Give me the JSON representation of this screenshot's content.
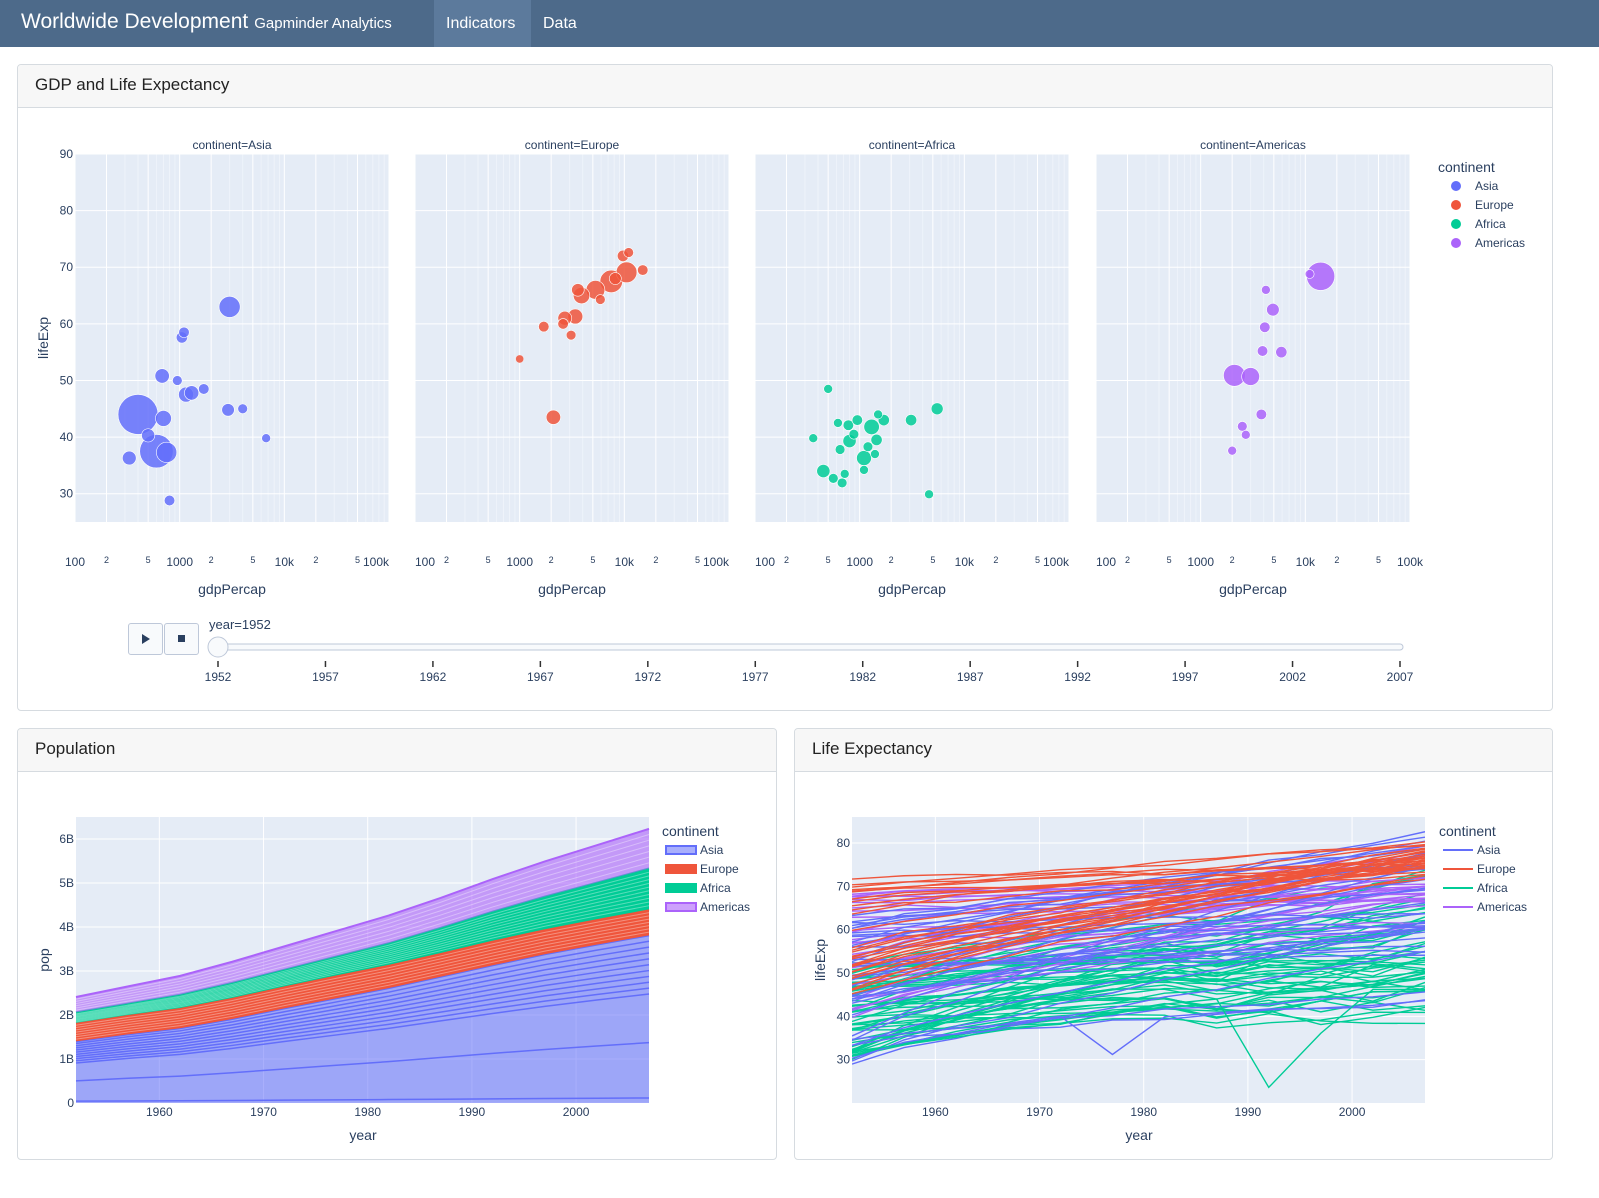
{
  "navbar": {
    "title": "Worldwide Development",
    "subtitle": "Gapminder Analytics",
    "tabs": [
      "Indicators",
      "Data"
    ]
  },
  "colors": {
    "Asia": "#636efa",
    "Europe": "#ef553b",
    "Africa": "#00cc96",
    "Americas": "#ab63fa",
    "plot_bg": "#e5ecf6",
    "navbar": "#4d6a8a"
  },
  "cards": {
    "gdp_title": "GDP and Life Expectancy",
    "pop_title": "Population",
    "life_title": "Life Expectancy"
  },
  "animation": {
    "current_label": "year=1952",
    "play_icon": "play-icon",
    "stop_icon": "stop-icon",
    "years": [
      "1952",
      "1957",
      "1962",
      "1967",
      "1972",
      "1977",
      "1982",
      "1987",
      "1992",
      "1997",
      "2002",
      "2007"
    ]
  },
  "chart_data": [
    {
      "type": "scatter",
      "title": "",
      "facet_titles": [
        "continent=Asia",
        "continent=Europe",
        "continent=Africa",
        "continent=Americas"
      ],
      "xlabel": "gdpPercap",
      "ylabel": "lifeExp",
      "xscale": "log",
      "xlim": [
        100,
        100000
      ],
      "ylim": [
        25,
        90
      ],
      "xticks": [
        "100",
        "2",
        "5",
        "1000",
        "2",
        "5",
        "10k",
        "2",
        "5",
        "100k"
      ],
      "yticks": [
        "30",
        "40",
        "50",
        "60",
        "70",
        "80",
        "90"
      ],
      "legend_title": "continent",
      "legend": [
        "Asia",
        "Europe",
        "Africa",
        "Americas"
      ],
      "grid": true,
      "legend_position": "right",
      "facets": [
        {
          "name": "Asia",
          "points": [
            {
              "x": 400,
              "y": 44,
              "size": 1
            },
            {
              "x": 600,
              "y": 37.5,
              "size": 0.7
            },
            {
              "x": 3000,
              "y": 63,
              "size": 0.28
            },
            {
              "x": 750,
              "y": 37.3,
              "size": 0.26
            },
            {
              "x": 700,
              "y": 43.3,
              "size": 0.16
            },
            {
              "x": 1150,
              "y": 47.5,
              "size": 0.14
            },
            {
              "x": 680,
              "y": 50.8,
              "size": 0.13
            },
            {
              "x": 1300,
              "y": 47.8,
              "size": 0.13
            },
            {
              "x": 330,
              "y": 36.3,
              "size": 0.12
            },
            {
              "x": 500,
              "y": 40.3,
              "size": 0.11
            },
            {
              "x": 2900,
              "y": 44.8,
              "size": 0.1
            },
            {
              "x": 1050,
              "y": 57.6,
              "size": 0.08
            },
            {
              "x": 1100,
              "y": 58.5,
              "size": 0.07
            },
            {
              "x": 1700,
              "y": 48.5,
              "size": 0.07
            },
            {
              "x": 4000,
              "y": 45,
              "size": 0.06
            },
            {
              "x": 800,
              "y": 28.8,
              "size": 0.07
            },
            {
              "x": 950,
              "y": 50,
              "size": 0.06
            },
            {
              "x": 6700,
              "y": 39.8,
              "size": 0.05
            }
          ]
        },
        {
          "name": "Europe",
          "points": [
            {
              "x": 7500,
              "y": 67.5,
              "size": 0.32
            },
            {
              "x": 10500,
              "y": 69.1,
              "size": 0.27
            },
            {
              "x": 5300,
              "y": 66,
              "size": 0.22
            },
            {
              "x": 3900,
              "y": 65,
              "size": 0.17
            },
            {
              "x": 3400,
              "y": 61.3,
              "size": 0.14
            },
            {
              "x": 2100,
              "y": 43.5,
              "size": 0.13
            },
            {
              "x": 2700,
              "y": 61,
              "size": 0.12
            },
            {
              "x": 3600,
              "y": 66,
              "size": 0.1
            },
            {
              "x": 8200,
              "y": 68,
              "size": 0.09
            },
            {
              "x": 9700,
              "y": 72,
              "size": 0.08
            },
            {
              "x": 15000,
              "y": 69.5,
              "size": 0.07
            },
            {
              "x": 2600,
              "y": 60,
              "size": 0.07
            },
            {
              "x": 1700,
              "y": 59.5,
              "size": 0.07
            },
            {
              "x": 3100,
              "y": 58,
              "size": 0.06
            },
            {
              "x": 5900,
              "y": 64.3,
              "size": 0.06
            },
            {
              "x": 11000,
              "y": 72.6,
              "size": 0.06
            },
            {
              "x": 1000,
              "y": 53.8,
              "size": 0.04
            }
          ]
        },
        {
          "name": "Africa",
          "points": [
            {
              "x": 1300,
              "y": 41.8,
              "size": 0.15
            },
            {
              "x": 1100,
              "y": 36.3,
              "size": 0.14
            },
            {
              "x": 800,
              "y": 39.3,
              "size": 0.11
            },
            {
              "x": 450,
              "y": 34,
              "size": 0.11
            },
            {
              "x": 5500,
              "y": 45,
              "size": 0.09
            },
            {
              "x": 1700,
              "y": 43,
              "size": 0.08
            },
            {
              "x": 1450,
              "y": 39.5,
              "size": 0.08
            },
            {
              "x": 3100,
              "y": 43,
              "size": 0.08
            },
            {
              "x": 780,
              "y": 42.1,
              "size": 0.07
            },
            {
              "x": 950,
              "y": 43,
              "size": 0.07
            },
            {
              "x": 1200,
              "y": 38.3,
              "size": 0.06
            },
            {
              "x": 880,
              "y": 40.5,
              "size": 0.06
            },
            {
              "x": 680,
              "y": 31.9,
              "size": 0.06
            },
            {
              "x": 560,
              "y": 32.7,
              "size": 0.06
            },
            {
              "x": 650,
              "y": 37.8,
              "size": 0.06
            },
            {
              "x": 4600,
              "y": 29.9,
              "size": 0.05
            },
            {
              "x": 500,
              "y": 48.5,
              "size": 0.05
            },
            {
              "x": 1400,
              "y": 37,
              "size": 0.05
            },
            {
              "x": 720,
              "y": 33.5,
              "size": 0.05
            },
            {
              "x": 1500,
              "y": 44,
              "size": 0.05
            },
            {
              "x": 620,
              "y": 42.5,
              "size": 0.05
            },
            {
              "x": 1100,
              "y": 34.2,
              "size": 0.05
            },
            {
              "x": 360,
              "y": 39.8,
              "size": 0.05
            }
          ]
        },
        {
          "name": "Americas",
          "points": [
            {
              "x": 14000,
              "y": 68.4,
              "size": 0.5
            },
            {
              "x": 2100,
              "y": 50.9,
              "size": 0.3
            },
            {
              "x": 3000,
              "y": 50.7,
              "size": 0.2
            },
            {
              "x": 4900,
              "y": 62.5,
              "size": 0.1
            },
            {
              "x": 5900,
              "y": 55,
              "size": 0.08
            },
            {
              "x": 4100,
              "y": 59.4,
              "size": 0.07
            },
            {
              "x": 3900,
              "y": 55.2,
              "size": 0.07
            },
            {
              "x": 3800,
              "y": 44,
              "size": 0.07
            },
            {
              "x": 2500,
              "y": 41.9,
              "size": 0.06
            },
            {
              "x": 2000,
              "y": 37.6,
              "size": 0.05
            },
            {
              "x": 11000,
              "y": 68.8,
              "size": 0.05
            },
            {
              "x": 4200,
              "y": 66,
              "size": 0.05
            },
            {
              "x": 2700,
              "y": 40.4,
              "size": 0.05
            }
          ]
        }
      ]
    },
    {
      "type": "area",
      "title": "",
      "xlabel": "year",
      "ylabel": "pop",
      "xlim": [
        1952,
        2007
      ],
      "ylim": [
        0,
        6.5
      ],
      "xticks": [
        "1960",
        "1970",
        "1980",
        "1990",
        "2000"
      ],
      "yticks": [
        "0",
        "1B",
        "2B",
        "3B",
        "4B",
        "5B",
        "6B"
      ],
      "legend_title": "continent",
      "legend_position": "top-right",
      "grid": true,
      "x": [
        1952,
        1957,
        1962,
        1967,
        1972,
        1977,
        1982,
        1987,
        1992,
        1997,
        2002,
        2007
      ],
      "series": [
        {
          "name": "Asia",
          "values": [
            1.4,
            1.56,
            1.7,
            1.91,
            2.15,
            2.38,
            2.61,
            2.87,
            3.13,
            3.38,
            3.6,
            3.81
          ]
        },
        {
          "name": "Europe",
          "values": [
            0.42,
            0.44,
            0.46,
            0.48,
            0.5,
            0.52,
            0.53,
            0.54,
            0.56,
            0.57,
            0.58,
            0.59
          ]
        },
        {
          "name": "Africa",
          "values": [
            0.24,
            0.26,
            0.3,
            0.34,
            0.38,
            0.43,
            0.49,
            0.57,
            0.66,
            0.74,
            0.83,
            0.93
          ]
        },
        {
          "name": "Americas",
          "values": [
            0.35,
            0.39,
            0.43,
            0.48,
            0.53,
            0.58,
            0.63,
            0.68,
            0.74,
            0.8,
            0.85,
            0.9
          ]
        }
      ]
    },
    {
      "type": "line",
      "title": "",
      "xlabel": "year",
      "ylabel": "lifeExp",
      "xlim": [
        1952,
        2007
      ],
      "ylim": [
        20,
        86
      ],
      "xticks": [
        "1960",
        "1970",
        "1980",
        "1990",
        "2000"
      ],
      "yticks": [
        "30",
        "40",
        "50",
        "60",
        "70",
        "80"
      ],
      "legend_title": "continent",
      "legend_position": "top-right",
      "grid": true,
      "x": [
        1952,
        1957,
        1962,
        1967,
        1972,
        1977,
        1982,
        1987,
        1992,
        1997,
        2002,
        2007
      ],
      "series": [
        {
          "name": "Asia",
          "start_range": [
            29,
            65
          ],
          "end_range": [
            43,
            83
          ],
          "count": 33
        },
        {
          "name": "Europe",
          "start_range": [
            44,
            73
          ],
          "end_range": [
            72,
            81
          ],
          "count": 30
        },
        {
          "name": "Africa",
          "start_range": [
            30,
            53
          ],
          "end_range": [
            40,
            76
          ],
          "count": 52
        },
        {
          "name": "Americas",
          "start_range": [
            38,
            69
          ],
          "end_range": [
            60,
            80
          ],
          "count": 25
        }
      ],
      "highlights": [
        {
          "name": "Asia",
          "values": [
            30.3,
            34.0,
            36.0,
            38.4,
            40.0,
            31.2,
            39.9,
            40.8,
            41.7,
            41.8,
            42.1,
            43.8
          ]
        },
        {
          "name": "Africa",
          "values": [
            31.9,
            33.5,
            35.2,
            37.0,
            38.4,
            40.5,
            42.8,
            44.0,
            23.6,
            36.1,
            46.2,
            46.2
          ]
        }
      ]
    }
  ]
}
